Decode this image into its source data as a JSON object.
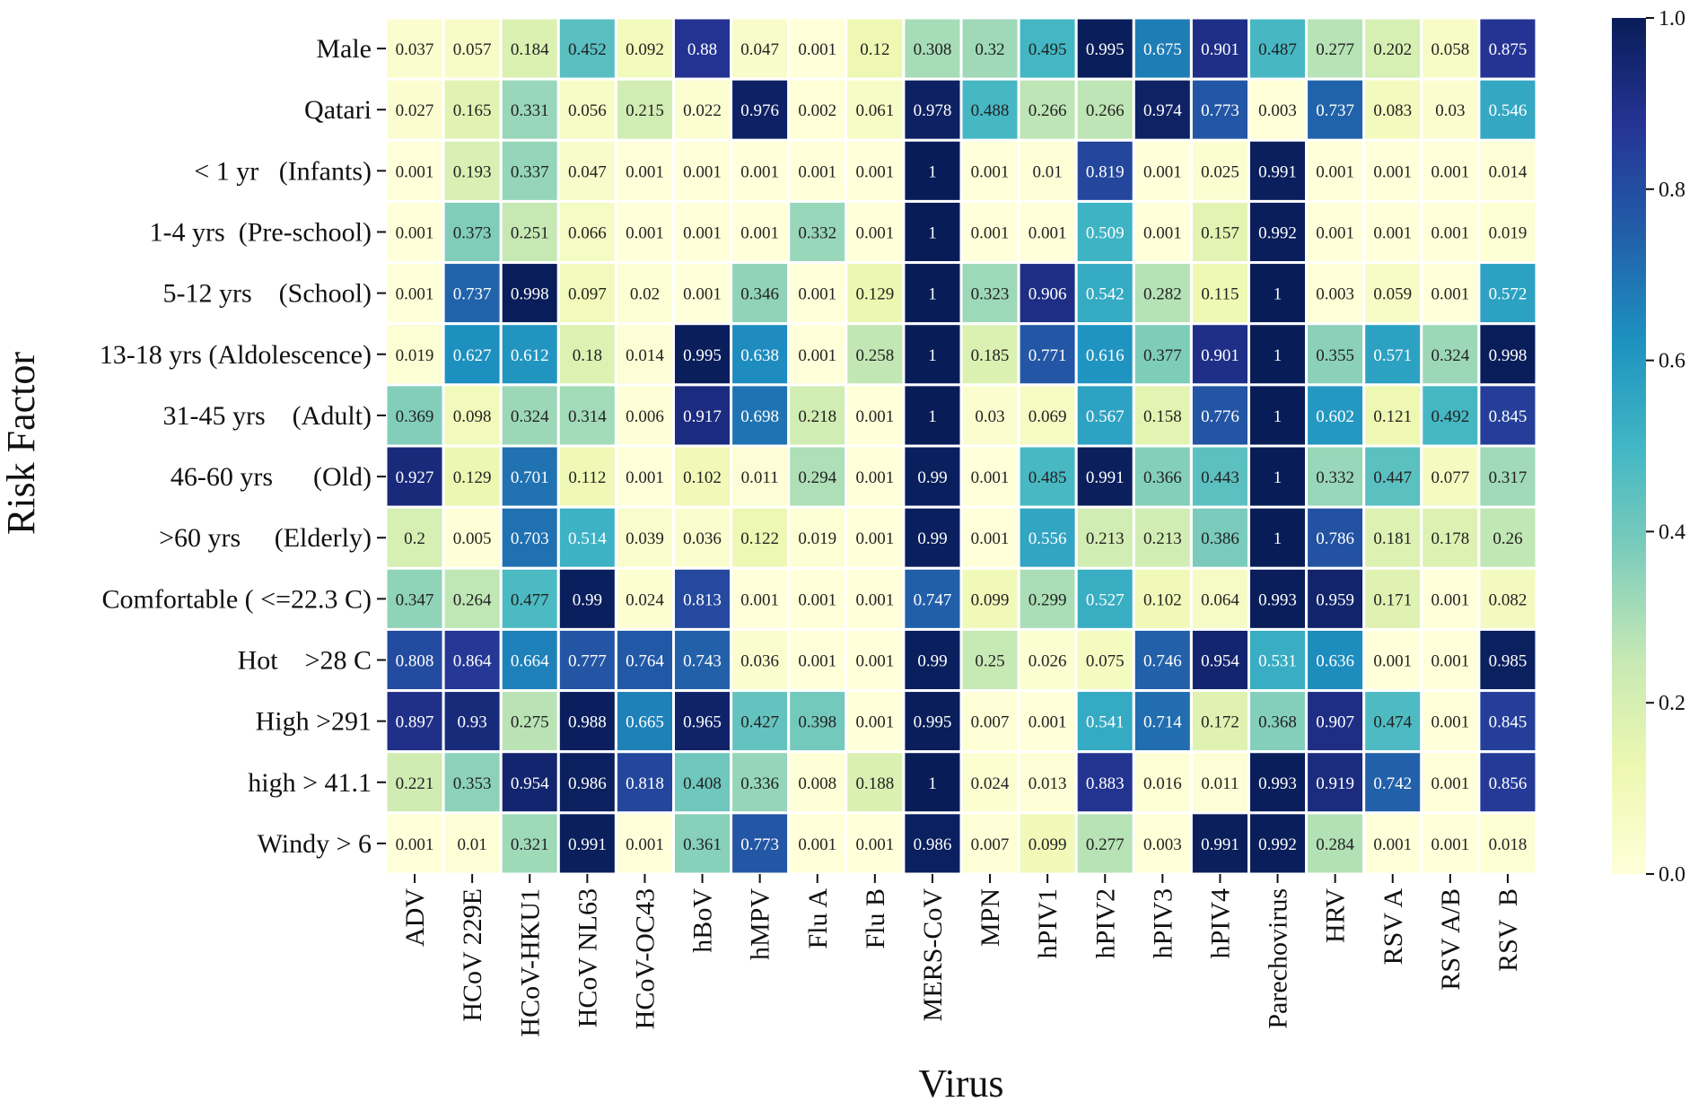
{
  "chart_data": {
    "type": "heatmap",
    "xlabel": "Virus",
    "ylabel": "Risk Factor",
    "colorscale": "YlGnBu",
    "vmin": 0.0,
    "vmax": 1.0,
    "colorbar_ticks": [
      "0.0",
      "0.2",
      "0.4",
      "0.6",
      "0.8",
      "1.0"
    ],
    "columns": [
      "ADV",
      "HCoV 229E",
      "HCoV-HKU1",
      "HCoV NL63",
      "HCoV-OC43",
      "hBoV",
      "hMPV",
      "Flu A",
      "Flu B",
      "MERS-CoV",
      "MPN",
      "hPIV1",
      "hPIV2",
      "hPIV3",
      "hPIV4",
      "Parechovirus",
      "HRV",
      "RSV A",
      "RSV A/B",
      "RSV  B"
    ],
    "rows": [
      "Male",
      "Qatari",
      "< 1 yr   (Infants)",
      "1-4 yrs  (Pre-school)",
      "5-12 yrs    (School)",
      "13-18 yrs (Aldolescence)",
      "31-45 yrs    (Adult)",
      "46-60 yrs      (Old)",
      ">60 yrs     (Elderly)",
      "Comfortable ( <=22.3 C)",
      "Hot    >28 C",
      "High >291",
      "high > 41.1",
      "Windy > 6"
    ],
    "labels": [
      [
        "0.037",
        "0.057",
        "0.184",
        "0.452",
        "0.092",
        "0.88",
        "0.047",
        "0.001",
        "0.12",
        "0.308",
        "0.32",
        "0.495",
        "0.995",
        "0.675",
        "0.901",
        "0.487",
        "0.277",
        "0.202",
        "0.058",
        "0.875"
      ],
      [
        "0.027",
        "0.165",
        "0.331",
        "0.056",
        "0.215",
        "0.022",
        "0.976",
        "0.002",
        "0.061",
        "0.978",
        "0.488",
        "0.266",
        "0.266",
        "0.974",
        "0.773",
        "0.003",
        "0.737",
        "0.083",
        "0.03",
        "0.546"
      ],
      [
        "0.001",
        "0.193",
        "0.337",
        "0.047",
        "0.001",
        "0.001",
        "0.001",
        "0.001",
        "0.001",
        "1",
        "0.001",
        "0.01",
        "0.819",
        "0.001",
        "0.025",
        "0.991",
        "0.001",
        "0.001",
        "0.001",
        "0.014"
      ],
      [
        "0.001",
        "0.373",
        "0.251",
        "0.066",
        "0.001",
        "0.001",
        "0.001",
        "0.332",
        "0.001",
        "1",
        "0.001",
        "0.001",
        "0.509",
        "0.001",
        "0.157",
        "0.992",
        "0.001",
        "0.001",
        "0.001",
        "0.019"
      ],
      [
        "0.001",
        "0.737",
        "0.998",
        "0.097",
        "0.02",
        "0.001",
        "0.346",
        "0.001",
        "0.129",
        "1",
        "0.323",
        "0.906",
        "0.542",
        "0.282",
        "0.115",
        "1",
        "0.003",
        "0.059",
        "0.001",
        "0.572"
      ],
      [
        "0.019",
        "0.627",
        "0.612",
        "0.18",
        "0.014",
        "0.995",
        "0.638",
        "0.001",
        "0.258",
        "1",
        "0.185",
        "0.771",
        "0.616",
        "0.377",
        "0.901",
        "1",
        "0.355",
        "0.571",
        "0.324",
        "0.998"
      ],
      [
        "0.369",
        "0.098",
        "0.324",
        "0.314",
        "0.006",
        "0.917",
        "0.698",
        "0.218",
        "0.001",
        "1",
        "0.03",
        "0.069",
        "0.567",
        "0.158",
        "0.776",
        "1",
        "0.602",
        "0.121",
        "0.492",
        "0.845"
      ],
      [
        "0.927",
        "0.129",
        "0.701",
        "0.112",
        "0.001",
        "0.102",
        "0.011",
        "0.294",
        "0.001",
        "0.99",
        "0.001",
        "0.485",
        "0.991",
        "0.366",
        "0.443",
        "1",
        "0.332",
        "0.447",
        "0.077",
        "0.317"
      ],
      [
        "0.2",
        "0.005",
        "0.703",
        "0.514",
        "0.039",
        "0.036",
        "0.122",
        "0.019",
        "0.001",
        "0.99",
        "0.001",
        "0.556",
        "0.213",
        "0.213",
        "0.386",
        "1",
        "0.786",
        "0.181",
        "0.178",
        "0.26"
      ],
      [
        "0.347",
        "0.264",
        "0.477",
        "0.99",
        "0.024",
        "0.813",
        "0.001",
        "0.001",
        "0.001",
        "0.747",
        "0.099",
        "0.299",
        "0.527",
        "0.102",
        "0.064",
        "0.993",
        "0.959",
        "0.171",
        "0.001",
        "0.082"
      ],
      [
        "0.808",
        "0.864",
        "0.664",
        "0.777",
        "0.764",
        "0.743",
        "0.036",
        "0.001",
        "0.001",
        "0.99",
        "0.25",
        "0.026",
        "0.075",
        "0.746",
        "0.954",
        "0.531",
        "0.636",
        "0.001",
        "0.001",
        "0.985"
      ],
      [
        "0.897",
        "0.93",
        "0.275",
        "0.988",
        "0.665",
        "0.965",
        "0.427",
        "0.398",
        "0.001",
        "0.995",
        "0.007",
        "0.001",
        "0.541",
        "0.714",
        "0.172",
        "0.368",
        "0.907",
        "0.474",
        "0.001",
        "0.845"
      ],
      [
        "0.221",
        "0.353",
        "0.954",
        "0.986",
        "0.818",
        "0.408",
        "0.336",
        "0.008",
        "0.188",
        "1",
        "0.024",
        "0.013",
        "0.883",
        "0.016",
        "0.011",
        "0.993",
        "0.919",
        "0.742",
        "0.001",
        "0.856"
      ],
      [
        "0.001",
        "0.01",
        "0.321",
        "0.991",
        "0.001",
        "0.361",
        "0.773",
        "0.001",
        "0.001",
        "0.986",
        "0.007",
        "0.099",
        "0.277",
        "0.003",
        "0.991",
        "0.992",
        "0.284",
        "0.001",
        "0.001",
        "0.018"
      ]
    ]
  }
}
